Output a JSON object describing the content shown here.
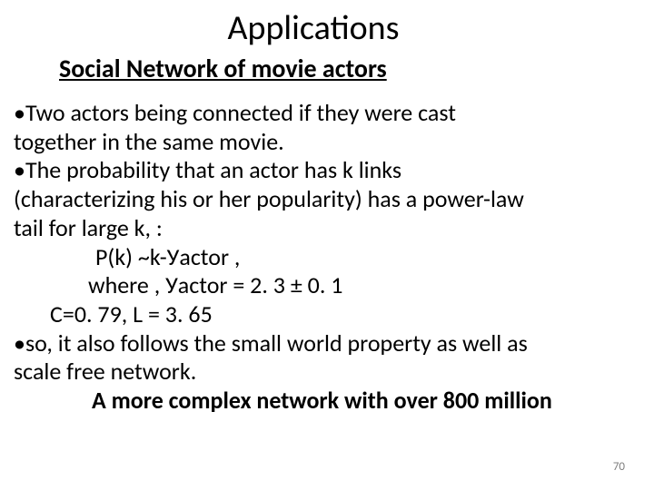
{
  "title": "Applications",
  "subtitle": "Social Network of movie  actors",
  "lines": {
    "l1": "•Two actors being connected if they were cast",
    "l2": "together in the same movie.",
    "l3": "•The probability  that an actor has k links",
    "l4": "(characterizing his or her popularity) has a power-law",
    "l5": "tail for large  k, :",
    "l6": "P(k) ~k-Уactor   ,",
    "l7": "where , Уactor = 2. 3 ± 0. 1",
    "l8": "C=0. 79, L = 3. 65",
    "l9": "•so, it also follows the small world property as well as",
    "l10": "scale free network.",
    "l11": "A more complex network with over 800 million"
  },
  "page_number": "70",
  "styling": {
    "background_color": "#ffffff",
    "text_color": "#000000",
    "title_fontsize": 38,
    "subtitle_fontsize": 28,
    "body_fontsize": 26,
    "page_number_fontsize": 13,
    "page_number_color": "#808080",
    "font_family": "Calibri"
  }
}
